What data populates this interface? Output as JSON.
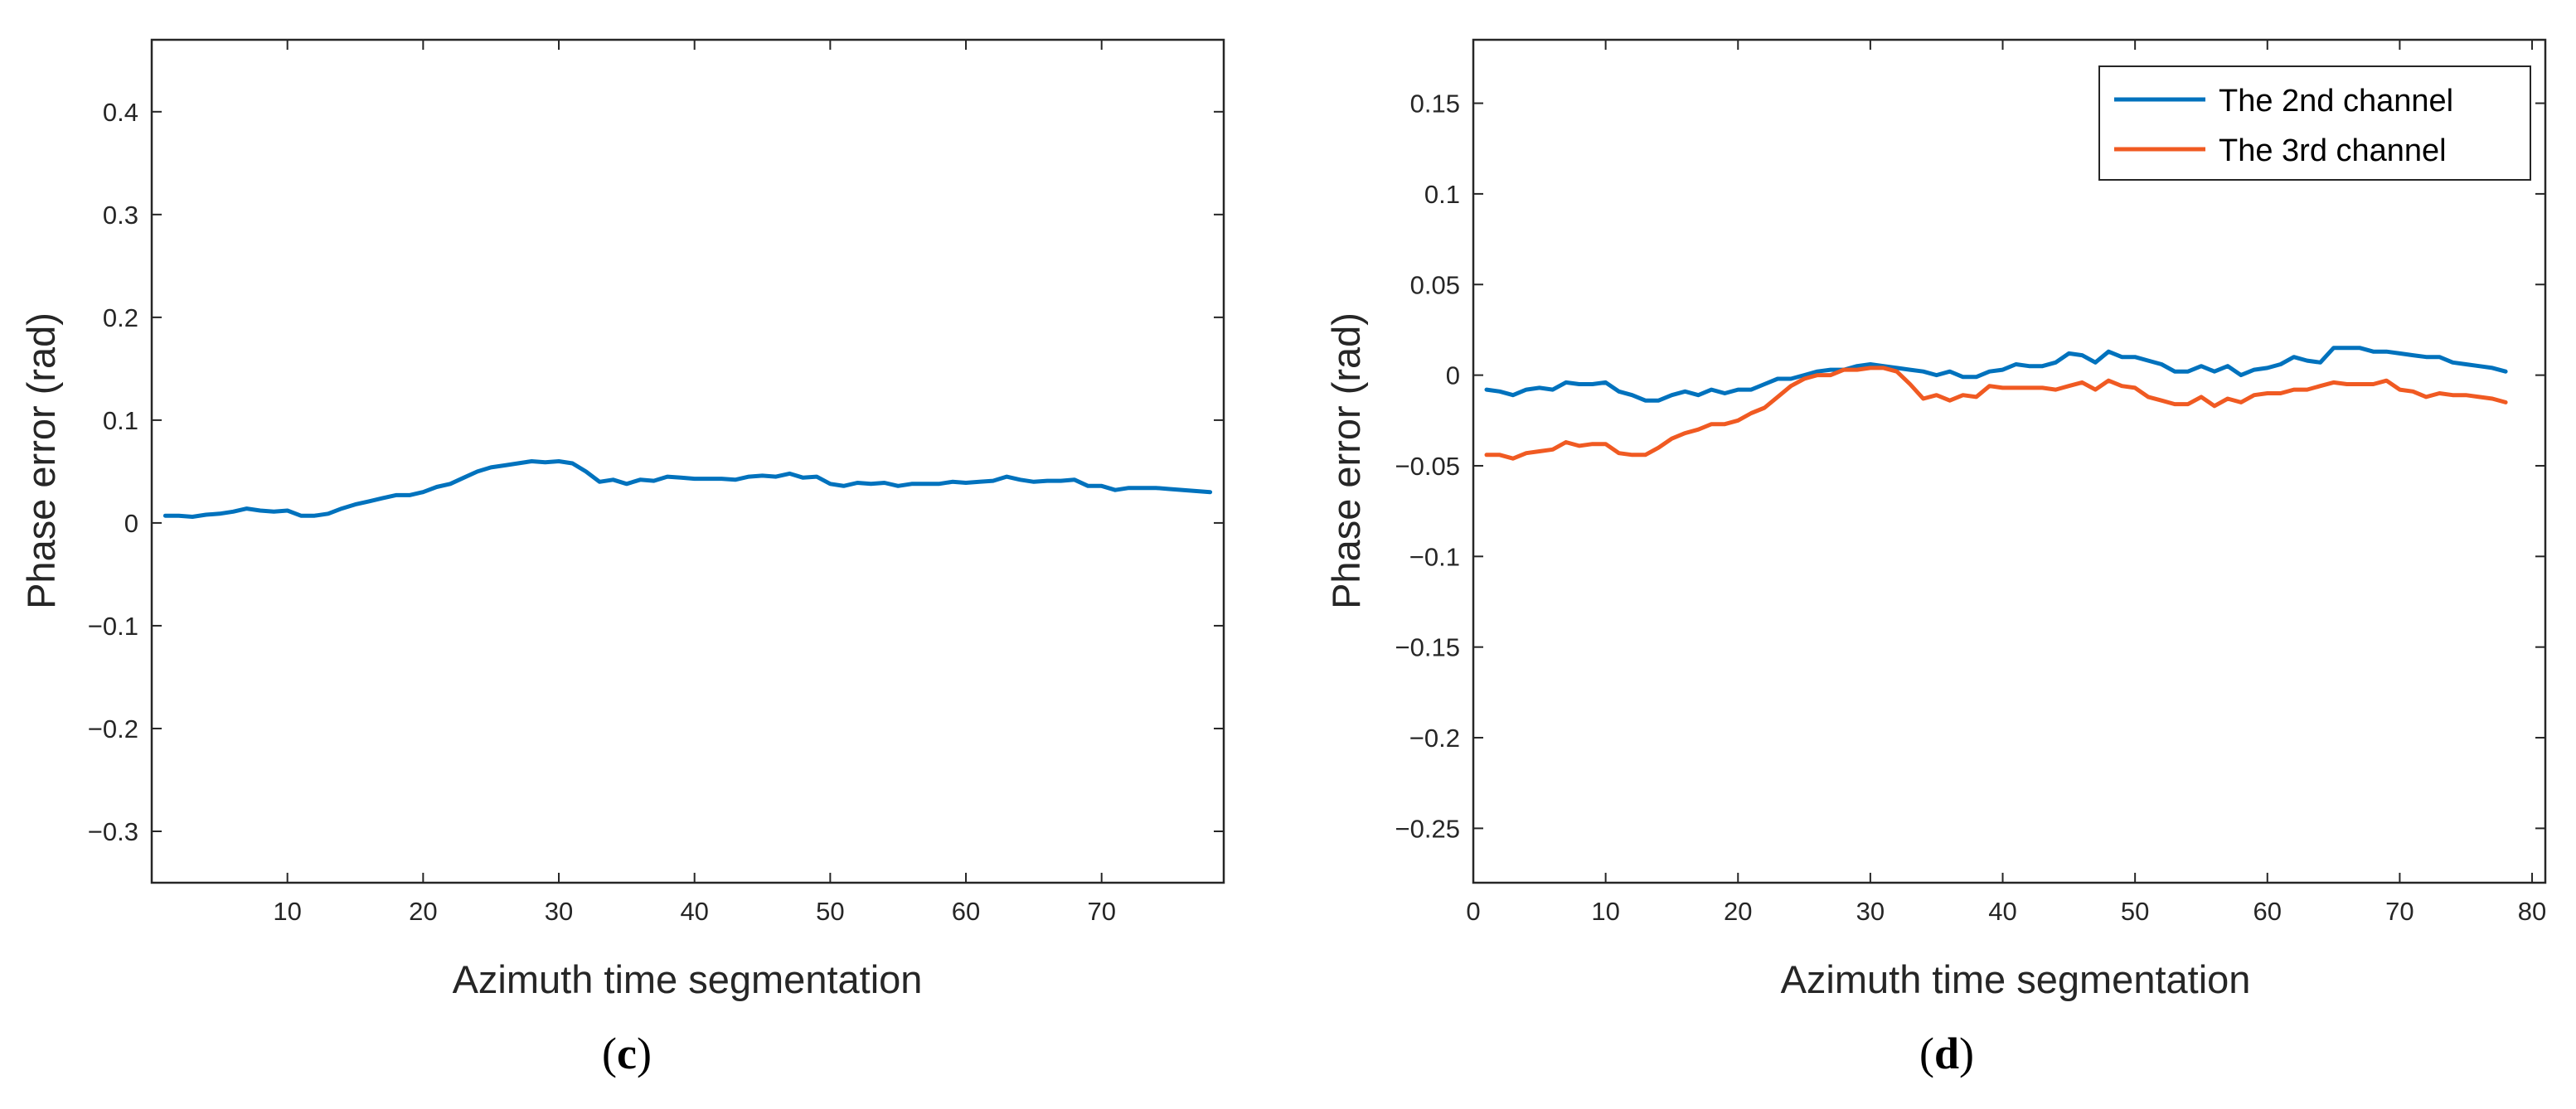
{
  "chart_data": [
    {
      "type": "line",
      "panel_label": "c",
      "xlabel": "Azimuth time segmentation",
      "ylabel": "Phase error (rad)",
      "xlim": [
        0,
        79
      ],
      "ylim": [
        -0.35,
        0.47
      ],
      "xticks": [
        10,
        20,
        30,
        40,
        50,
        60,
        70
      ],
      "yticks": [
        -0.3,
        -0.2,
        -0.1,
        0,
        0.1,
        0.2,
        0.3,
        0.4
      ],
      "ytick_labels": [
        "−0.3",
        "−0.2",
        "−0.1",
        "0",
        "0.1",
        "0.2",
        "0.3",
        "0.4"
      ],
      "grid": false,
      "legend": null,
      "series": [
        {
          "name": "",
          "color": "#0072BD",
          "x": [
            1,
            2,
            3,
            4,
            5,
            6,
            7,
            8,
            9,
            10,
            11,
            12,
            13,
            14,
            15,
            16,
            17,
            18,
            19,
            20,
            21,
            22,
            23,
            24,
            25,
            26,
            27,
            28,
            29,
            30,
            31,
            32,
            33,
            34,
            35,
            36,
            37,
            38,
            39,
            40,
            41,
            42,
            43,
            44,
            45,
            46,
            47,
            48,
            49,
            50,
            51,
            52,
            53,
            54,
            55,
            56,
            57,
            58,
            59,
            60,
            61,
            62,
            63,
            64,
            65,
            66,
            67,
            68,
            69,
            70,
            71,
            72,
            73,
            74,
            75,
            76,
            77,
            78
          ],
          "values": [
            0.007,
            0.007,
            0.006,
            0.008,
            0.009,
            0.011,
            0.014,
            0.012,
            0.011,
            0.012,
            0.007,
            0.007,
            0.009,
            0.014,
            0.018,
            0.021,
            0.024,
            0.027,
            0.027,
            0.03,
            0.035,
            0.038,
            0.044,
            0.05,
            0.054,
            0.056,
            0.058,
            0.06,
            0.059,
            0.06,
            0.058,
            0.05,
            0.04,
            0.042,
            0.038,
            0.042,
            0.041,
            0.045,
            0.044,
            0.043,
            0.043,
            0.043,
            0.042,
            0.045,
            0.046,
            0.045,
            0.048,
            0.044,
            0.045,
            0.038,
            0.036,
            0.039,
            0.038,
            0.039,
            0.036,
            0.038,
            0.038,
            0.038,
            0.04,
            0.039,
            0.04,
            0.041,
            0.045,
            0.042,
            0.04,
            0.041,
            0.041,
            0.042,
            0.036,
            0.036,
            0.032,
            0.034,
            0.034,
            0.034,
            0.033,
            0.032,
            0.031,
            0.03
          ]
        }
      ]
    },
    {
      "type": "line",
      "panel_label": "d",
      "xlabel": "Azimuth time segmentation",
      "ylabel": "Phase error (rad)",
      "xlim": [
        0,
        81
      ],
      "ylim": [
        -0.28,
        0.185
      ],
      "xticks": [
        0,
        10,
        20,
        30,
        40,
        50,
        60,
        70,
        80
      ],
      "yticks": [
        -0.25,
        -0.2,
        -0.15,
        -0.1,
        -0.05,
        0,
        0.05,
        0.1,
        0.15
      ],
      "ytick_labels": [
        "−0.25",
        "−0.2",
        "−0.15",
        "−0.1",
        "−0.05",
        "0",
        "0.05",
        "0.1",
        "0.15"
      ],
      "grid": false,
      "legend": "top-right",
      "series": [
        {
          "name": "The 2nd channel",
          "color": "#0072BD",
          "x": [
            1,
            2,
            3,
            4,
            5,
            6,
            7,
            8,
            9,
            10,
            11,
            12,
            13,
            14,
            15,
            16,
            17,
            18,
            19,
            20,
            21,
            22,
            23,
            24,
            25,
            26,
            27,
            28,
            29,
            30,
            31,
            32,
            33,
            34,
            35,
            36,
            37,
            38,
            39,
            40,
            41,
            42,
            43,
            44,
            45,
            46,
            47,
            48,
            49,
            50,
            51,
            52,
            53,
            54,
            55,
            56,
            57,
            58,
            59,
            60,
            61,
            62,
            63,
            64,
            65,
            66,
            67,
            68,
            69,
            70,
            71,
            72,
            73,
            74,
            75,
            76,
            77,
            78
          ],
          "values": [
            -0.008,
            -0.009,
            -0.011,
            -0.008,
            -0.007,
            -0.008,
            -0.004,
            -0.005,
            -0.005,
            -0.004,
            -0.009,
            -0.011,
            -0.014,
            -0.014,
            -0.011,
            -0.009,
            -0.011,
            -0.008,
            -0.01,
            -0.008,
            -0.008,
            -0.005,
            -0.002,
            -0.002,
            0.0,
            0.002,
            0.003,
            0.003,
            0.005,
            0.006,
            0.005,
            0.004,
            0.003,
            0.002,
            0.0,
            0.002,
            -0.001,
            -0.001,
            0.002,
            0.003,
            0.006,
            0.005,
            0.005,
            0.007,
            0.012,
            0.011,
            0.007,
            0.013,
            0.01,
            0.01,
            0.008,
            0.006,
            0.002,
            0.002,
            0.005,
            0.002,
            0.005,
            0.0,
            0.003,
            0.004,
            0.006,
            0.01,
            0.008,
            0.007,
            0.015,
            0.015,
            0.015,
            0.013,
            0.013,
            0.012,
            0.011,
            0.01,
            0.01,
            0.007,
            0.006,
            0.005,
            0.004,
            0.002
          ]
        },
        {
          "name": "The 3rd channel",
          "color": "#F05A22",
          "x": [
            1,
            2,
            3,
            4,
            5,
            6,
            7,
            8,
            9,
            10,
            11,
            12,
            13,
            14,
            15,
            16,
            17,
            18,
            19,
            20,
            21,
            22,
            23,
            24,
            25,
            26,
            27,
            28,
            29,
            30,
            31,
            32,
            33,
            34,
            35,
            36,
            37,
            38,
            39,
            40,
            41,
            42,
            43,
            44,
            45,
            46,
            47,
            48,
            49,
            50,
            51,
            52,
            53,
            54,
            55,
            56,
            57,
            58,
            59,
            60,
            61,
            62,
            63,
            64,
            65,
            66,
            67,
            68,
            69,
            70,
            71,
            72,
            73,
            74,
            75,
            76,
            77,
            78
          ],
          "values": [
            -0.044,
            -0.044,
            -0.046,
            -0.043,
            -0.042,
            -0.041,
            -0.037,
            -0.039,
            -0.038,
            -0.038,
            -0.043,
            -0.044,
            -0.044,
            -0.04,
            -0.035,
            -0.032,
            -0.03,
            -0.027,
            -0.027,
            -0.025,
            -0.021,
            -0.018,
            -0.012,
            -0.006,
            -0.002,
            0.0,
            0.0,
            0.003,
            0.003,
            0.004,
            0.004,
            0.002,
            -0.005,
            -0.013,
            -0.011,
            -0.014,
            -0.011,
            -0.012,
            -0.006,
            -0.007,
            -0.007,
            -0.007,
            -0.007,
            -0.008,
            -0.006,
            -0.004,
            -0.008,
            -0.003,
            -0.006,
            -0.007,
            -0.012,
            -0.014,
            -0.016,
            -0.016,
            -0.012,
            -0.017,
            -0.013,
            -0.015,
            -0.011,
            -0.01,
            -0.01,
            -0.008,
            -0.008,
            -0.006,
            -0.004,
            -0.005,
            -0.005,
            -0.005,
            -0.003,
            -0.008,
            -0.009,
            -0.012,
            -0.01,
            -0.011,
            -0.011,
            -0.012,
            -0.013,
            -0.015
          ]
        }
      ]
    }
  ]
}
